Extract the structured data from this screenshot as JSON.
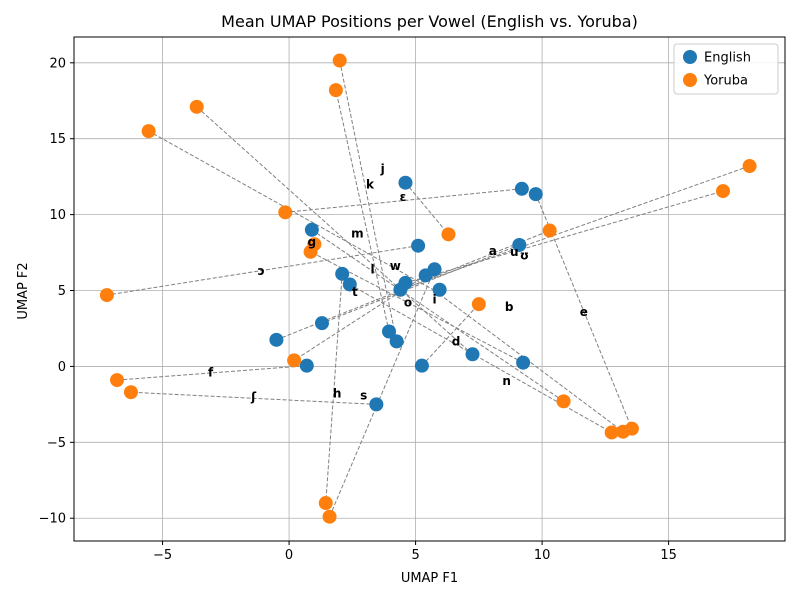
{
  "chart_data": {
    "type": "scatter",
    "title": "Mean UMAP Positions per Vowel (English vs. Yoruba)",
    "xlabel": "UMAP F1",
    "ylabel": "UMAP F2",
    "xlim": [
      -8.5,
      19.6
    ],
    "ylim": [
      -11.5,
      21.7
    ],
    "xticks": [
      -5,
      0,
      5,
      10,
      15
    ],
    "yticks": [
      -10,
      -5,
      0,
      5,
      10,
      15,
      20
    ],
    "grid": true,
    "legend": "top-right",
    "series": [
      {
        "name": "English",
        "color": "#1f77b4",
        "points": [
          [
            4.6,
            12.1
          ],
          [
            9.2,
            11.7
          ],
          [
            9.75,
            11.35
          ],
          [
            0.9,
            9.0
          ],
          [
            5.1,
            7.95
          ],
          [
            9.1,
            8.0
          ],
          [
            5.75,
            6.4
          ],
          [
            5.4,
            6.0
          ],
          [
            2.1,
            6.1
          ],
          [
            2.4,
            5.4
          ],
          [
            4.6,
            5.5
          ],
          [
            4.4,
            5.05
          ],
          [
            1.3,
            2.85
          ],
          [
            3.95,
            2.3
          ],
          [
            4.25,
            1.65
          ],
          [
            -0.5,
            1.75
          ],
          [
            7.25,
            0.8
          ],
          [
            9.25,
            0.25
          ],
          [
            5.25,
            0.05
          ],
          [
            0.7,
            0.05
          ],
          [
            3.45,
            -2.5
          ]
        ]
      },
      {
        "name": "Yoruba",
        "color": "#ff7f0e",
        "points": [
          [
            2.0,
            20.15
          ],
          [
            1.85,
            18.2
          ],
          [
            -3.65,
            17.1
          ],
          [
            -5.55,
            15.5
          ],
          [
            18.2,
            13.2
          ],
          [
            17.15,
            11.55
          ],
          [
            -0.15,
            10.15
          ],
          [
            10.3,
            8.95
          ],
          [
            6.3,
            8.7
          ],
          [
            1.0,
            8.05
          ],
          [
            0.85,
            7.55
          ],
          [
            -7.2,
            4.7
          ],
          [
            7.5,
            4.1
          ],
          [
            0.2,
            0.4
          ],
          [
            -6.8,
            -0.9
          ],
          [
            -6.25,
            -1.7
          ],
          [
            10.85,
            -2.3
          ],
          [
            12.75,
            -4.35
          ],
          [
            13.2,
            -4.3
          ],
          [
            13.55,
            -4.1
          ],
          [
            1.45,
            -9.0
          ],
          [
            1.6,
            -9.9
          ]
        ]
      }
    ],
    "vowel_labels": [
      {
        "text": "j",
        "x": 3.7,
        "y": 13.0
      },
      {
        "text": "k",
        "x": 3.2,
        "y": 12.0
      },
      {
        "text": "ɛ",
        "x": 4.5,
        "y": 11.15
      },
      {
        "text": "m",
        "x": 2.7,
        "y": 8.75
      },
      {
        "text": "g",
        "x": 0.9,
        "y": 8.2
      },
      {
        "text": "a",
        "x": 8.05,
        "y": 7.6
      },
      {
        "text": "u",
        "x": 8.9,
        "y": 7.55
      },
      {
        "text": "ʊ",
        "x": 9.3,
        "y": 7.3
      },
      {
        "text": "w",
        "x": 4.2,
        "y": 6.6
      },
      {
        "text": "l",
        "x": 3.3,
        "y": 6.4
      },
      {
        "text": "ɔ",
        "x": -1.1,
        "y": 6.3
      },
      {
        "text": "t",
        "x": 2.6,
        "y": 4.9
      },
      {
        "text": "o",
        "x": 4.7,
        "y": 4.2
      },
      {
        "text": "i",
        "x": 5.75,
        "y": 4.4
      },
      {
        "text": "b",
        "x": 8.7,
        "y": 3.9
      },
      {
        "text": "e",
        "x": 11.65,
        "y": 3.6
      },
      {
        "text": "d",
        "x": 6.6,
        "y": 1.65
      },
      {
        "text": "f",
        "x": -3.1,
        "y": -0.4
      },
      {
        "text": "n",
        "x": 8.6,
        "y": -0.95
      },
      {
        "text": "h",
        "x": 1.9,
        "y": -1.8
      },
      {
        "text": "ʃ",
        "x": -1.4,
        "y": -2.0
      },
      {
        "text": "s",
        "x": 2.95,
        "y": -1.9
      }
    ],
    "connections": [
      [
        [
          4.6,
          12.1
        ],
        [
          6.3,
          8.7
        ]
      ],
      [
        [
          9.2,
          11.7
        ],
        [
          -0.15,
          10.15
        ]
      ],
      [
        [
          9.75,
          11.35
        ],
        [
          13.55,
          -4.1
        ]
      ],
      [
        [
          0.9,
          9.0
        ],
        [
          10.85,
          -2.3
        ]
      ],
      [
        [
          5.1,
          7.95
        ],
        [
          -7.2,
          4.7
        ]
      ],
      [
        [
          9.1,
          8.0
        ],
        [
          1.3,
          2.85
        ]
      ],
      [
        [
          5.75,
          6.4
        ],
        [
          1.6,
          -9.9
        ]
      ],
      [
        [
          5.4,
          6.0
        ],
        [
          0.2,
          0.4
        ]
      ],
      [
        [
          2.1,
          6.1
        ],
        [
          1.45,
          -9.0
        ]
      ],
      [
        [
          2.4,
          5.4
        ],
        [
          12.75,
          -4.35
        ]
      ],
      [
        [
          4.6,
          5.5
        ],
        [
          17.15,
          11.55
        ]
      ],
      [
        [
          4.4,
          5.05
        ],
        [
          18.2,
          13.2
        ]
      ],
      [
        [
          3.95,
          2.3
        ],
        [
          1.85,
          18.2
        ]
      ],
      [
        [
          4.25,
          1.65
        ],
        [
          2.0,
          20.15
        ]
      ],
      [
        [
          -0.5,
          1.75
        ],
        [
          10.3,
          8.95
        ]
      ],
      [
        [
          7.25,
          0.8
        ],
        [
          -3.65,
          17.1
        ]
      ],
      [
        [
          9.25,
          0.25
        ],
        [
          0.85,
          7.55
        ]
      ],
      [
        [
          5.25,
          0.05
        ],
        [
          7.5,
          4.1
        ]
      ],
      [
        [
          0.7,
          0.05
        ],
        [
          -6.8,
          -0.9
        ]
      ],
      [
        [
          3.45,
          -2.5
        ],
        [
          -6.25,
          -1.7
        ]
      ],
      [
        [
          5.75,
          5.0
        ],
        [
          -5.55,
          15.5
        ]
      ],
      [
        [
          5.75,
          5.0
        ],
        [
          13.2,
          -4.3
        ]
      ]
    ],
    "extra_english": [
      [
        5.95,
        5.05
      ]
    ]
  }
}
